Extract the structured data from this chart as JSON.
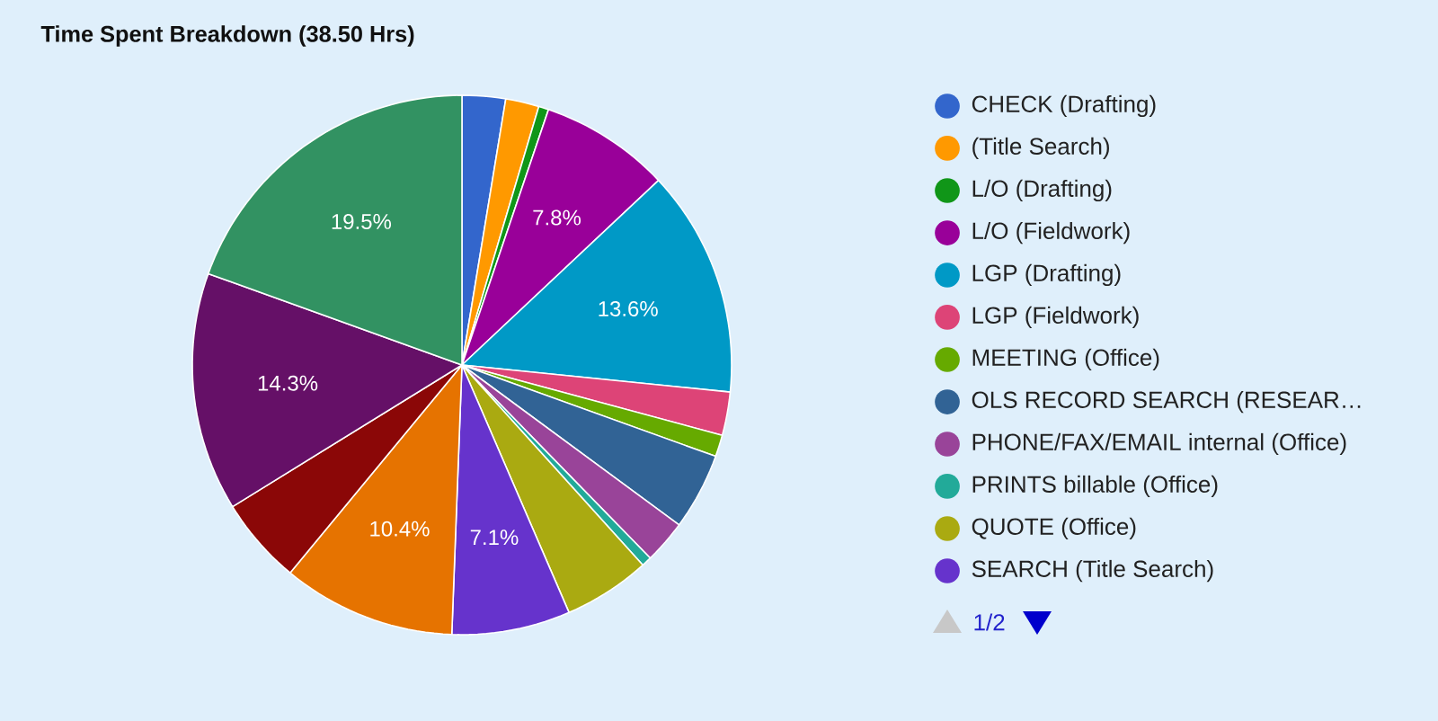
{
  "chart_data": {
    "type": "pie",
    "title": "Time Spent Breakdown (38.50 Hrs)",
    "categories": [
      "CHECK (Drafting)",
      "(Title Search)",
      "L/O (Drafting)",
      "L/O (Fieldwork)",
      "LGP (Drafting)",
      "LGP (Fieldwork)",
      "MEETING (Office)",
      "OLS RECORD SEARCH (RESEAR…",
      "PHONE/FAX/EMAIL internal (Office)",
      "PRINTS billable (Office)",
      "QUOTE (Office)",
      "SEARCH (Title Search)",
      null,
      null,
      null,
      null
    ],
    "values": [
      2.6,
      2.0,
      0.6,
      7.8,
      13.6,
      2.6,
      1.3,
      4.6,
      2.6,
      0.6,
      5.2,
      7.1,
      10.4,
      5.2,
      14.3,
      19.5
    ],
    "colors": [
      "#3366cc",
      "#ff9900",
      "#109618",
      "#990099",
      "#0099c6",
      "#dd4477",
      "#66aa00",
      "#316395",
      "#994499",
      "#22aa99",
      "#aaaa11",
      "#6633cc",
      "#e67300",
      "#8b0707",
      "#651067",
      "#329262"
    ],
    "value_labels": [
      null,
      null,
      null,
      "7.8%",
      "13.6%",
      null,
      null,
      null,
      null,
      null,
      null,
      "7.1%",
      "10.4%",
      null,
      "14.3%",
      "19.5%"
    ],
    "legend": "right",
    "annotations": [
      "1/2"
    ]
  }
}
